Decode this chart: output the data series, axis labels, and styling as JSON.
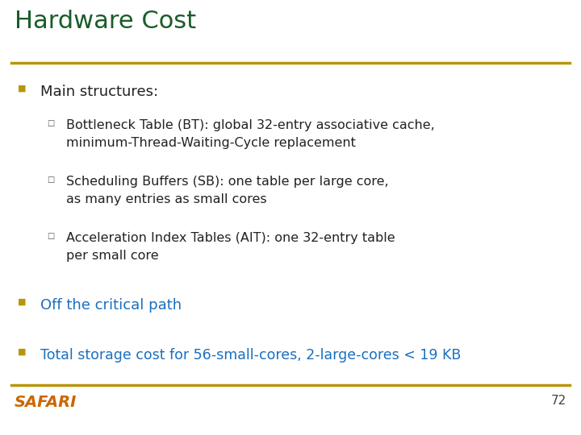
{
  "title": "Hardware Cost",
  "title_color": "#1a5c2a",
  "title_fontsize": 22,
  "separator_color": "#b8960c",
  "background_color": "#ffffff",
  "bullet_color": "#b8960c",
  "main_text_color": "#222222",
  "highlight_text_color": "#1a6fbf",
  "safari_color": "#cc6600",
  "page_num": "72",
  "bullet1_text": "Main structures:",
  "bullet1_color": "#222222",
  "sub_bullets": [
    "Bottleneck Table (BT): global 32-entry associative cache,\nminimum-Thread-Waiting-Cycle replacement",
    "Scheduling Buffers (SB): one table per large core,\nas many entries as small cores",
    "Acceleration Index Tables (AIT): one 32-entry table\nper small core"
  ],
  "bullet2_text": "Off the critical path",
  "bullet2_color": "#1a6fbf",
  "bullet3_text": "Total storage cost for 56-small-cores, 2-large-cores < 19 KB",
  "bullet3_color": "#1a6fbf"
}
